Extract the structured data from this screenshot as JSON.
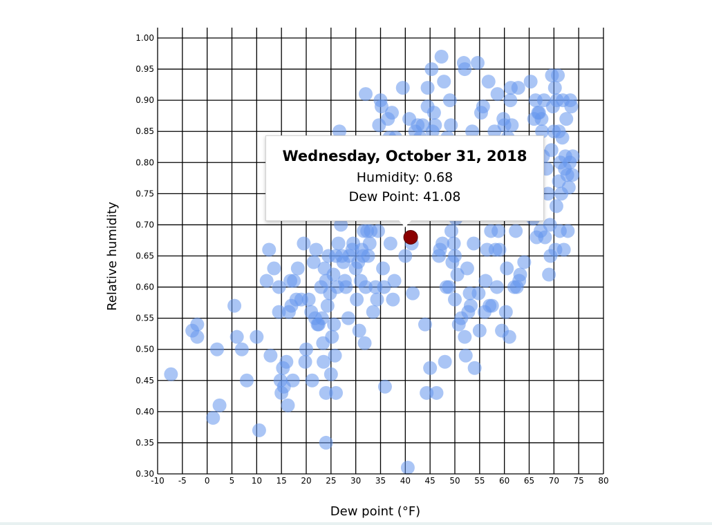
{
  "chart_data": {
    "type": "scatter",
    "xlabel": "Dew point (°F)",
    "ylabel": "Relative humidity",
    "xlim": [
      -10,
      80
    ],
    "ylim": [
      0.3,
      1.0
    ],
    "x_ticks": [
      "-10",
      "-5",
      "0",
      "5",
      "10",
      "15",
      "20",
      "25",
      "30",
      "35",
      "40",
      "45",
      "50",
      "55",
      "60",
      "65",
      "70",
      "75",
      "80"
    ],
    "y_ticks": [
      "0.30",
      "0.35",
      "0.40",
      "0.45",
      "0.50",
      "0.55",
      "0.60",
      "0.65",
      "0.70",
      "0.75",
      "0.80",
      "0.85",
      "0.90",
      "0.95",
      "1.00"
    ],
    "grid": true,
    "point_color": "#6495ED",
    "highlight_color": "#8B0000",
    "points": [
      [
        -7.3,
        0.46
      ],
      [
        -3,
        0.53
      ],
      [
        -2,
        0.54
      ],
      [
        -2,
        0.52
      ],
      [
        2,
        0.5
      ],
      [
        1.2,
        0.39
      ],
      [
        2.5,
        0.41
      ],
      [
        5.5,
        0.57
      ],
      [
        6,
        0.52
      ],
      [
        7,
        0.5
      ],
      [
        8,
        0.45
      ],
      [
        10,
        0.52
      ],
      [
        10.5,
        0.37
      ],
      [
        12,
        0.61
      ],
      [
        12.5,
        0.66
      ],
      [
        12.8,
        0.49
      ],
      [
        13.5,
        0.63
      ],
      [
        14.5,
        0.6
      ],
      [
        14.5,
        0.56
      ],
      [
        14.8,
        0.45
      ],
      [
        15,
        0.43
      ],
      [
        15.3,
        0.47
      ],
      [
        15.5,
        0.44
      ],
      [
        16,
        0.48
      ],
      [
        16.3,
        0.41
      ],
      [
        16.5,
        0.56
      ],
      [
        16.8,
        0.61
      ],
      [
        17,
        0.57
      ],
      [
        17.3,
        0.45
      ],
      [
        17.5,
        0.61
      ],
      [
        18,
        0.58
      ],
      [
        18.3,
        0.63
      ],
      [
        19,
        0.58
      ],
      [
        19.5,
        0.67
      ],
      [
        19.8,
        0.48
      ],
      [
        20,
        0.5
      ],
      [
        20.5,
        0.58
      ],
      [
        21,
        0.56
      ],
      [
        21.2,
        0.45
      ],
      [
        21.5,
        0.64
      ],
      [
        21.8,
        0.55
      ],
      [
        22,
        0.66
      ],
      [
        22.3,
        0.54
      ],
      [
        22.5,
        0.54
      ],
      [
        23,
        0.6
      ],
      [
        23.2,
        0.55
      ],
      [
        23.4,
        0.51
      ],
      [
        23.5,
        0.48
      ],
      [
        23.7,
        0.63
      ],
      [
        24,
        0.61
      ],
      [
        24,
        0.43
      ],
      [
        24,
        0.35
      ],
      [
        24.3,
        0.57
      ],
      [
        24.5,
        0.65
      ],
      [
        24.8,
        0.59
      ],
      [
        25,
        0.46
      ],
      [
        25.2,
        0.52
      ],
      [
        25.5,
        0.62
      ],
      [
        25.6,
        0.54
      ],
      [
        25.8,
        0.49
      ],
      [
        26,
        0.43
      ],
      [
        26,
        0.65
      ],
      [
        26.3,
        0.6
      ],
      [
        26.5,
        0.67
      ],
      [
        26.7,
        0.85
      ],
      [
        27,
        0.7
      ],
      [
        27.2,
        0.65
      ],
      [
        27.5,
        0.64
      ],
      [
        27.8,
        0.61
      ],
      [
        28,
        0.6
      ],
      [
        28.5,
        0.55
      ],
      [
        28.7,
        0.65
      ],
      [
        29,
        0.75
      ],
      [
        29.3,
        0.66
      ],
      [
        29.5,
        0.67
      ],
      [
        30,
        0.63
      ],
      [
        30.2,
        0.58
      ],
      [
        30.5,
        0.64
      ],
      [
        30.7,
        0.53
      ],
      [
        31,
        0.61
      ],
      [
        31.2,
        0.66
      ],
      [
        31.5,
        0.65
      ],
      [
        31.6,
        0.69
      ],
      [
        31.8,
        0.51
      ],
      [
        32,
        0.6
      ],
      [
        32,
        0.91
      ],
      [
        32.3,
        0.69
      ],
      [
        32.5,
        0.65
      ],
      [
        32.8,
        0.67
      ],
      [
        33,
        0.69
      ],
      [
        33.5,
        0.56
      ],
      [
        34,
        0.6
      ],
      [
        34.3,
        0.58
      ],
      [
        34.5,
        0.69
      ],
      [
        34.7,
        0.86
      ],
      [
        35,
        0.9
      ],
      [
        35.2,
        0.89
      ],
      [
        35.5,
        0.63
      ],
      [
        35.7,
        0.6
      ],
      [
        35.9,
        0.44
      ],
      [
        36,
        0.74
      ],
      [
        36.5,
        0.87
      ],
      [
        36.8,
        0.84
      ],
      [
        37,
        0.67
      ],
      [
        37.3,
        0.88
      ],
      [
        37.5,
        0.58
      ],
      [
        37.8,
        0.61
      ],
      [
        38,
        0.84
      ],
      [
        39,
        0.82
      ],
      [
        39.5,
        0.92
      ],
      [
        40,
        0.65
      ],
      [
        40.5,
        0.31
      ],
      [
        40.8,
        0.87
      ],
      [
        41,
        0.83
      ],
      [
        41.3,
        0.67
      ],
      [
        41.5,
        0.59
      ],
      [
        42,
        0.85
      ],
      [
        42.5,
        0.86
      ],
      [
        43,
        0.84
      ],
      [
        43.5,
        0.86
      ],
      [
        44,
        0.54
      ],
      [
        44.3,
        0.43
      ],
      [
        44.5,
        0.92
      ],
      [
        44.5,
        0.89
      ],
      [
        45,
        0.47
      ],
      [
        45.3,
        0.95
      ],
      [
        45.5,
        0.85
      ],
      [
        45.8,
        0.88
      ],
      [
        46,
        0.86
      ],
      [
        46.3,
        0.43
      ],
      [
        46.8,
        0.65
      ],
      [
        47,
        0.66
      ],
      [
        47.3,
        0.97
      ],
      [
        47.5,
        0.67
      ],
      [
        47.8,
        0.93
      ],
      [
        48,
        0.48
      ],
      [
        48.3,
        0.6
      ],
      [
        48.5,
        0.84
      ],
      [
        48.8,
        0.6
      ],
      [
        49,
        0.9
      ],
      [
        49.2,
        0.86
      ],
      [
        49.3,
        0.69
      ],
      [
        49.5,
        0.64
      ],
      [
        49.8,
        0.67
      ],
      [
        50,
        0.65
      ],
      [
        50,
        0.58
      ],
      [
        50.2,
        0.71
      ],
      [
        50.5,
        0.62
      ],
      [
        50.8,
        0.54
      ],
      [
        51,
        0.77
      ],
      [
        51.3,
        0.55
      ],
      [
        51.8,
        0.96
      ],
      [
        52,
        0.95
      ],
      [
        52,
        0.52
      ],
      [
        52.2,
        0.49
      ],
      [
        52.5,
        0.63
      ],
      [
        52.7,
        0.56
      ],
      [
        53,
        0.59
      ],
      [
        53.2,
        0.57
      ],
      [
        53.5,
        0.85
      ],
      [
        53.8,
        0.67
      ],
      [
        54,
        0.47
      ],
      [
        54.3,
        0.82
      ],
      [
        54.6,
        0.96
      ],
      [
        54.8,
        0.59
      ],
      [
        55,
        0.53
      ],
      [
        55.3,
        0.88
      ],
      [
        55.5,
        0.8
      ],
      [
        55.7,
        0.89
      ],
      [
        56,
        0.56
      ],
      [
        56.2,
        0.61
      ],
      [
        56.5,
        0.66
      ],
      [
        56.8,
        0.93
      ],
      [
        57,
        0.57
      ],
      [
        57.3,
        0.69
      ],
      [
        57.5,
        0.57
      ],
      [
        58,
        0.85
      ],
      [
        58.2,
        0.66
      ],
      [
        58.5,
        0.6
      ],
      [
        58.6,
        0.91
      ],
      [
        58.8,
        0.69
      ],
      [
        59,
        0.66
      ],
      [
        59.5,
        0.53
      ],
      [
        59.8,
        0.87
      ],
      [
        60,
        0.86
      ],
      [
        60.3,
        0.56
      ],
      [
        60.5,
        0.63
      ],
      [
        60.7,
        0.84
      ],
      [
        61,
        0.52
      ],
      [
        61.2,
        0.9
      ],
      [
        61.3,
        0.92
      ],
      [
        61.5,
        0.86
      ],
      [
        61.8,
        0.8
      ],
      [
        62,
        0.6
      ],
      [
        62.3,
        0.69
      ],
      [
        62.5,
        0.6
      ],
      [
        62.8,
        0.92
      ],
      [
        63,
        0.61
      ],
      [
        63.2,
        0.62
      ],
      [
        63.5,
        0.83
      ],
      [
        64,
        0.64
      ],
      [
        64.5,
        0.72
      ],
      [
        65,
        0.82
      ],
      [
        65.3,
        0.93
      ],
      [
        65.5,
        0.8
      ],
      [
        65.8,
        0.71
      ],
      [
        66,
        0.87
      ],
      [
        66.3,
        0.9
      ],
      [
        66.5,
        0.68
      ],
      [
        66.8,
        0.88
      ],
      [
        67,
        0.88
      ],
      [
        67.3,
        0.69
      ],
      [
        67.5,
        0.87
      ],
      [
        67.6,
        0.85
      ],
      [
        67.8,
        0.81
      ],
      [
        68,
        0.9
      ],
      [
        68.2,
        0.68
      ],
      [
        68.5,
        0.79
      ],
      [
        68.8,
        0.75
      ],
      [
        69,
        0.62
      ],
      [
        69.2,
        0.7
      ],
      [
        69.3,
        0.65
      ],
      [
        69.5,
        0.82
      ],
      [
        69.6,
        0.94
      ],
      [
        69.8,
        0.89
      ],
      [
        70,
        0.85
      ],
      [
        70.2,
        0.92
      ],
      [
        70.3,
        0.66
      ],
      [
        70.5,
        0.73
      ],
      [
        70.6,
        0.9
      ],
      [
        70.8,
        0.94
      ],
      [
        71,
        0.85
      ],
      [
        71,
        0.77
      ],
      [
        71.2,
        0.69
      ],
      [
        71.3,
        0.8
      ],
      [
        71.5,
        0.75
      ],
      [
        71.7,
        0.84
      ],
      [
        71.8,
        0.9
      ],
      [
        72,
        0.66
      ],
      [
        72.2,
        0.79
      ],
      [
        72.3,
        0.81
      ],
      [
        72.5,
        0.87
      ],
      [
        72.7,
        0.78
      ],
      [
        72.8,
        0.69
      ],
      [
        73,
        0.76
      ],
      [
        73.2,
        0.8
      ],
      [
        73.3,
        0.9
      ],
      [
        73.5,
        0.89
      ],
      [
        73.7,
        0.78
      ],
      [
        73.8,
        0.81
      ]
    ],
    "highlight": {
      "x": 41.08,
      "y": 0.68
    },
    "tooltip": {
      "title": "Wednesday, October 31, 2018",
      "humidity_text": "Humidity: 0.68",
      "dewpoint_text": "Dew Point: 41.08"
    }
  }
}
